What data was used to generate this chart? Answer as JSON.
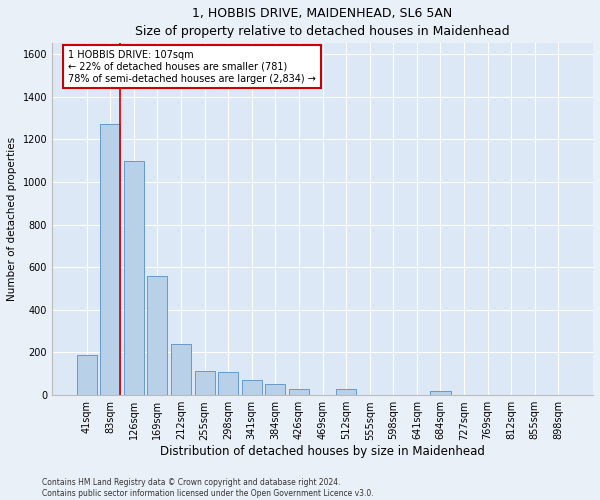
{
  "title": "1, HOBBIS DRIVE, MAIDENHEAD, SL6 5AN",
  "subtitle": "Size of property relative to detached houses in Maidenhead",
  "xlabel": "Distribution of detached houses by size in Maidenhead",
  "ylabel": "Number of detached properties",
  "footer_line1": "Contains HM Land Registry data © Crown copyright and database right 2024.",
  "footer_line2": "Contains public sector information licensed under the Open Government Licence v3.0.",
  "bar_labels": [
    "41sqm",
    "83sqm",
    "126sqm",
    "169sqm",
    "212sqm",
    "255sqm",
    "298sqm",
    "341sqm",
    "384sqm",
    "426sqm",
    "469sqm",
    "512sqm",
    "555sqm",
    "598sqm",
    "641sqm",
    "684sqm",
    "727sqm",
    "769sqm",
    "812sqm",
    "855sqm",
    "898sqm"
  ],
  "bar_values": [
    190,
    1270,
    1100,
    560,
    240,
    115,
    110,
    70,
    50,
    30,
    0,
    30,
    0,
    0,
    0,
    20,
    0,
    0,
    0,
    0,
    0
  ],
  "bar_color": "#b8d0e8",
  "bar_edge_color": "#6699cc",
  "ylim": [
    0,
    1650
  ],
  "yticks": [
    0,
    200,
    400,
    600,
    800,
    1000,
    1200,
    1400,
    1600
  ],
  "red_line_x": 1.42,
  "annotation_text": "1 HOBBIS DRIVE: 107sqm\n← 22% of detached houses are smaller (781)\n78% of semi-detached houses are larger (2,834) →",
  "annotation_box_color": "#ffffff",
  "annotation_box_edge": "#cc0000",
  "background_color": "#eaf0f8",
  "plot_bg_color": "#dce8f5",
  "grid_color": "#ffffff",
  "title_fontsize": 9,
  "subtitle_fontsize": 8.5,
  "xlabel_fontsize": 8.5,
  "ylabel_fontsize": 7.5,
  "tick_fontsize": 7,
  "annot_fontsize": 7,
  "footer_fontsize": 5.5
}
